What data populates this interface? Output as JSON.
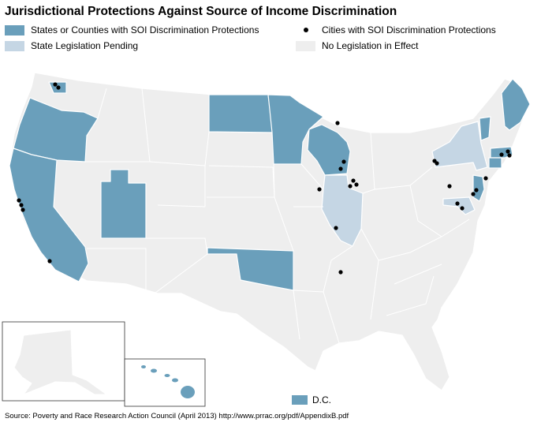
{
  "title": "Jurisdictional Protections Against Source of Income Discrimination",
  "legend": {
    "protected": "States or Counties with SOI Discrimination Protections",
    "pending": "State Legislation Pending",
    "cities": "Cities with SOI Discrimination Protections",
    "none": "No Legislation in Effect"
  },
  "colors": {
    "protected": "#6a9fbb",
    "pending": "#c5d6e4",
    "none": "#eeeeee",
    "border": "#ffffff",
    "city": "#000000"
  },
  "dc_label": "D.C.",
  "source": "Source: Poverty and Race Research Action Council (April 2013) http://www.prrac.org/pdf/AppendixB.pdf",
  "protected_states": [
    "Oregon",
    "California",
    "Utah",
    "North Dakota",
    "Minnesota",
    "Wisconsin",
    "Oklahoma",
    "Vermont",
    "Maine",
    "Massachusetts",
    "Connecticut",
    "New Jersey",
    "Washington (county)"
  ],
  "pending_states": [
    "New York",
    "Illinois",
    "Maryland"
  ],
  "city_markers": [
    "Seattle",
    "San Francisco",
    "Oakland",
    "Los Angeles",
    "Chicago",
    "Madison",
    "Milwaukee",
    "Iowa City",
    "St. Louis",
    "Memphis",
    "Philadelphia",
    "Buffalo",
    "Boston",
    "New York"
  ]
}
